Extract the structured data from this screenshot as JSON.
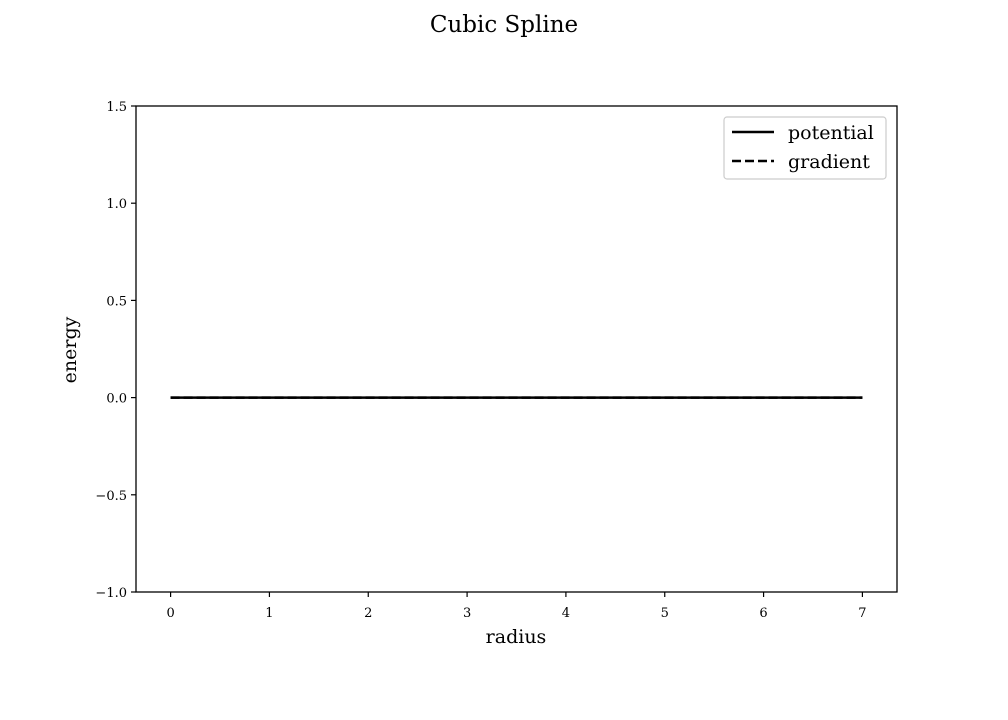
{
  "chart_data": {
    "type": "line",
    "title": "Cubic Spline",
    "xlabel": "radius",
    "ylabel": "energy",
    "xlim": [
      -0.35,
      7.35
    ],
    "ylim": [
      -1.0,
      1.5
    ],
    "x_ticks": [
      0,
      1,
      2,
      3,
      4,
      5,
      6,
      7
    ],
    "x_tick_labels": [
      "0",
      "1",
      "2",
      "3",
      "4",
      "5",
      "6",
      "7"
    ],
    "y_ticks": [
      -1.0,
      -0.5,
      0.0,
      0.5,
      1.0,
      1.5
    ],
    "y_tick_labels": [
      "−1.0",
      "−0.5",
      "0.0",
      "0.5",
      "1.0",
      "1.5"
    ],
    "grid": false,
    "legend_position": "top-right",
    "series": [
      {
        "name": "potential",
        "style": "solid",
        "color": "#000000",
        "x": [
          0,
          7
        ],
        "y": [
          0.0,
          0.0
        ]
      },
      {
        "name": "gradient",
        "style": "dashed",
        "color": "#000000",
        "x": [
          0,
          7
        ],
        "y": [
          0.0,
          0.0
        ]
      }
    ]
  }
}
